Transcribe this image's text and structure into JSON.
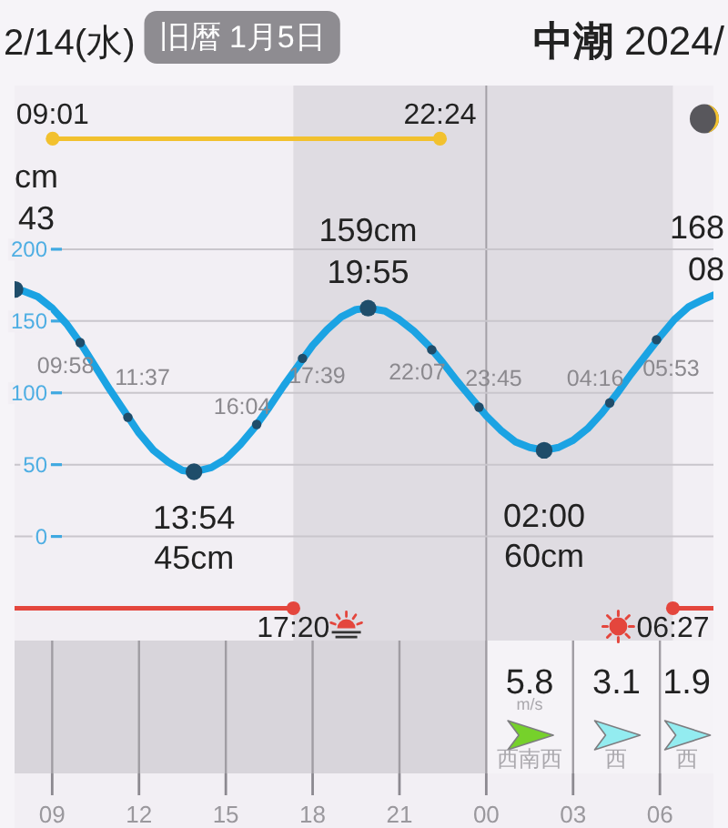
{
  "chart_data": [
    {
      "type": "other",
      "title": "2/14(水)",
      "subtitle": "旧暦 1月5日",
      "annotations": [
        "中潮 2024/"
      ]
    },
    {
      "type": "line",
      "xlim": [
        "2024-02-14T07:42",
        "2024-02-15T07:51"
      ],
      "ylim": [
        -72.5,
        314
      ],
      "yticks": [
        0,
        50,
        100,
        150,
        200
      ],
      "xticks": [
        {
          "value": "2024-02-14T09:00",
          "label": "09"
        },
        {
          "value": "2024-02-14T12:00",
          "label": "12"
        },
        {
          "value": "2024-02-14T15:00",
          "label": "15"
        },
        {
          "value": "2024-02-14T18:00",
          "label": "18"
        },
        {
          "value": "2024-02-14T21:00",
          "label": "21"
        },
        {
          "value": "2024-02-15T00:00",
          "label": "00"
        },
        {
          "value": "2024-02-15T03:00",
          "label": "03"
        },
        {
          "value": "2024-02-15T06:00",
          "label": "06"
        }
      ],
      "grid": "y",
      "bands": [
        {
          "axis": "x",
          "from": "2024-02-14T17:20",
          "to": "2024-02-15T06:27",
          "color": "#dfdce2"
        }
      ],
      "ref_lines": [
        {
          "axis": "x",
          "value": "2024-02-15T00:00",
          "color": "#a3a0a6"
        }
      ],
      "series": [
        {
          "color": "#1ba3e3",
          "x": [
            "2024-02-14T07:43",
            "2024-02-14T08:00",
            "2024-02-14T08:30",
            "2024-02-14T09:00",
            "2024-02-14T09:30",
            "2024-02-14T10:00",
            "2024-02-14T10:30",
            "2024-02-14T11:00",
            "2024-02-14T11:30",
            "2024-02-14T12:00",
            "2024-02-14T12:30",
            "2024-02-14T13:00",
            "2024-02-14T13:30",
            "2024-02-14T13:54",
            "2024-02-14T14:30",
            "2024-02-14T15:00",
            "2024-02-14T15:30",
            "2024-02-14T16:00",
            "2024-02-14T16:30",
            "2024-02-14T17:00",
            "2024-02-14T17:30",
            "2024-02-14T18:00",
            "2024-02-14T18:30",
            "2024-02-14T19:00",
            "2024-02-14T19:30",
            "2024-02-14T19:55",
            "2024-02-14T20:30",
            "2024-02-14T21:00",
            "2024-02-14T21:30",
            "2024-02-14T22:00",
            "2024-02-14T22:30",
            "2024-02-14T23:00",
            "2024-02-14T23:30",
            "2024-02-15T00:00",
            "2024-02-15T00:30",
            "2024-02-15T01:00",
            "2024-02-15T01:30",
            "2024-02-15T02:00",
            "2024-02-15T02:30",
            "2024-02-15T03:00",
            "2024-02-15T03:30",
            "2024-02-15T04:00",
            "2024-02-15T04:30",
            "2024-02-15T05:00",
            "2024-02-15T05:30",
            "2024-02-15T06:00",
            "2024-02-15T06:30",
            "2024-02-15T07:00",
            "2024-02-15T07:30",
            "2024-02-15T07:51"
          ],
          "values": [
            172,
            171,
            167,
            159,
            148,
            134,
            118,
            102,
            87,
            72,
            60,
            52,
            46,
            45,
            48,
            54,
            64,
            76,
            90,
            105,
            119,
            133,
            144,
            153,
            158,
            159,
            157,
            151,
            143,
            133,
            121,
            108,
            96,
            84,
            74,
            66,
            62,
            60,
            62,
            67,
            75,
            86,
            99,
            113,
            126,
            139,
            151,
            160,
            165,
            168
          ]
        },
        {
          "type": "scatter",
          "color": "#1f4d6a",
          "marker": "circle",
          "x": [
            "2024-02-14T07:43",
            "2024-02-14T13:54",
            "2024-02-14T19:55",
            "2024-02-15T02:00"
          ],
          "values": [
            172,
            45,
            159,
            60
          ],
          "value_labels": [
            "cm\n43",
            "13:54\n45cm",
            "159cm\n19:55",
            "02:00\n60cm"
          ]
        },
        {
          "type": "scatter",
          "color": "#1f4d6a",
          "marker": "circle",
          "x": [
            "2024-02-14T09:58",
            "2024-02-14T11:37",
            "2024-02-14T16:04",
            "2024-02-14T17:39",
            "2024-02-14T22:07",
            "2024-02-14T23:45",
            "2024-02-15T04:16",
            "2024-02-15T05:53"
          ],
          "values": [
            135,
            83,
            78,
            124,
            130,
            90,
            93,
            137
          ]
        },
        {
          "type": "line",
          "color": "#f2c12e",
          "x": [
            "2024-02-14T09:01",
            "2024-02-14T22:24"
          ],
          "values": [
            277,
            277
          ]
        },
        {
          "type": "scatter",
          "color": "#f2c12e",
          "marker": "circle",
          "x": [
            "2024-02-14T09:01",
            "2024-02-14T22:24"
          ],
          "values": [
            277,
            277
          ]
        },
        {
          "type": "line",
          "color": "#e4463d",
          "x": [
            "2024-02-14T07:42",
            "2024-02-14T17:20"
          ],
          "values": [
            -50,
            -50
          ]
        },
        {
          "type": "line",
          "color": "#e4463d",
          "x": [
            "2024-02-15T06:27",
            "2024-02-15T07:51"
          ],
          "values": [
            -50,
            -50
          ]
        },
        {
          "type": "scatter",
          "color": "#e4463d",
          "marker": "circle",
          "x": [
            "2024-02-14T17:20",
            "2024-02-15T06:27"
          ],
          "values": [
            -50,
            -50
          ]
        }
      ],
      "annotations": [
        {
          "text": "09:58",
          "x": "2024-02-14T09:58",
          "y": 135
        },
        {
          "text": "11:37",
          "x": "2024-02-14T11:37",
          "y": 83
        },
        {
          "text": "16:04",
          "x": "2024-02-14T16:04",
          "y": 78
        },
        {
          "text": "17:39",
          "x": "2024-02-14T17:39",
          "y": 124
        },
        {
          "text": "22:07",
          "x": "2024-02-14T22:07",
          "y": 130
        },
        {
          "text": "23:45",
          "x": "2024-02-14T23:45",
          "y": 90
        },
        {
          "text": "04:16",
          "x": "2024-02-15T04:16",
          "y": 93
        },
        {
          "text": "05:53",
          "x": "2024-02-15T05:53",
          "y": 137
        },
        "168\n08",
        {
          "text": "09:01",
          "x": "2024-02-14T09:01",
          "y": 277
        },
        {
          "text": "22:24",
          "x": "2024-02-14T22:24",
          "y": 277
        },
        {
          "text": "17:20",
          "x": "2024-02-14T17:20",
          "y": -50
        },
        {
          "text": "06:27",
          "x": "2024-02-15T06:27",
          "y": -50
        }
      ]
    },
    {
      "type": "other",
      "categories": [
        null,
        null,
        null,
        null,
        null,
        "西南西",
        "西",
        "西"
      ],
      "values": [
        null,
        null,
        null,
        null,
        null,
        5.8,
        3.1,
        1.9
      ],
      "data_labels": true,
      "colors": [
        null,
        null,
        null,
        null,
        null,
        "#76d12b",
        "#93ecf0",
        "#93ecf0"
      ],
      "ylabel": "m/s"
    }
  ]
}
